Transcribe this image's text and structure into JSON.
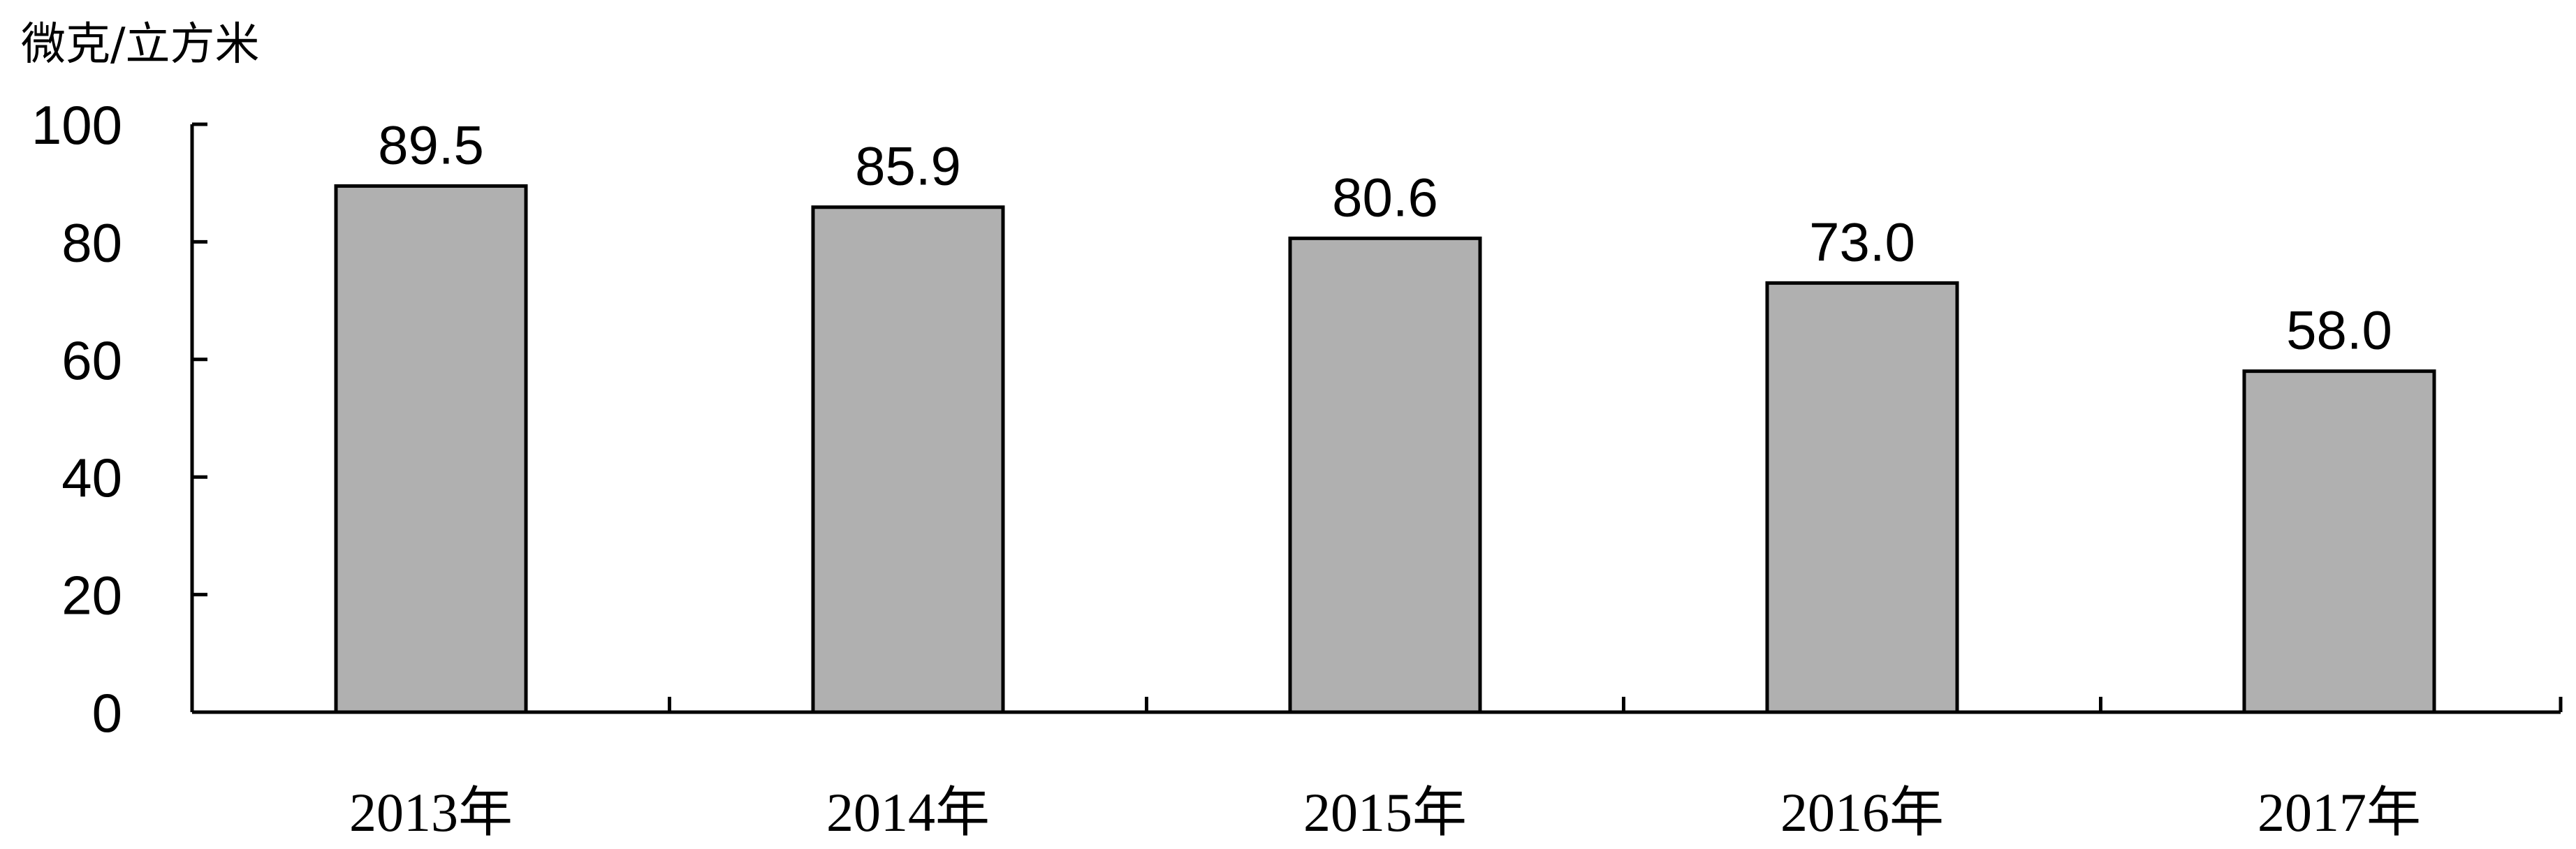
{
  "chart_data": {
    "type": "bar",
    "ylabel": "微克/立方米",
    "categories": [
      "2013年",
      "2014年",
      "2015年",
      "2016年",
      "2017年"
    ],
    "values": [
      89.5,
      85.9,
      80.6,
      73.0,
      58.0
    ],
    "value_labels": [
      "89.5",
      "85.9",
      "80.6",
      "73.0",
      "58.0"
    ],
    "yticks": [
      0,
      20,
      40,
      60,
      80,
      100
    ],
    "ylim": [
      0,
      100
    ],
    "grid": false,
    "legend": "none",
    "bar_color": "#b0b0b0",
    "edge_color": "#000000"
  }
}
